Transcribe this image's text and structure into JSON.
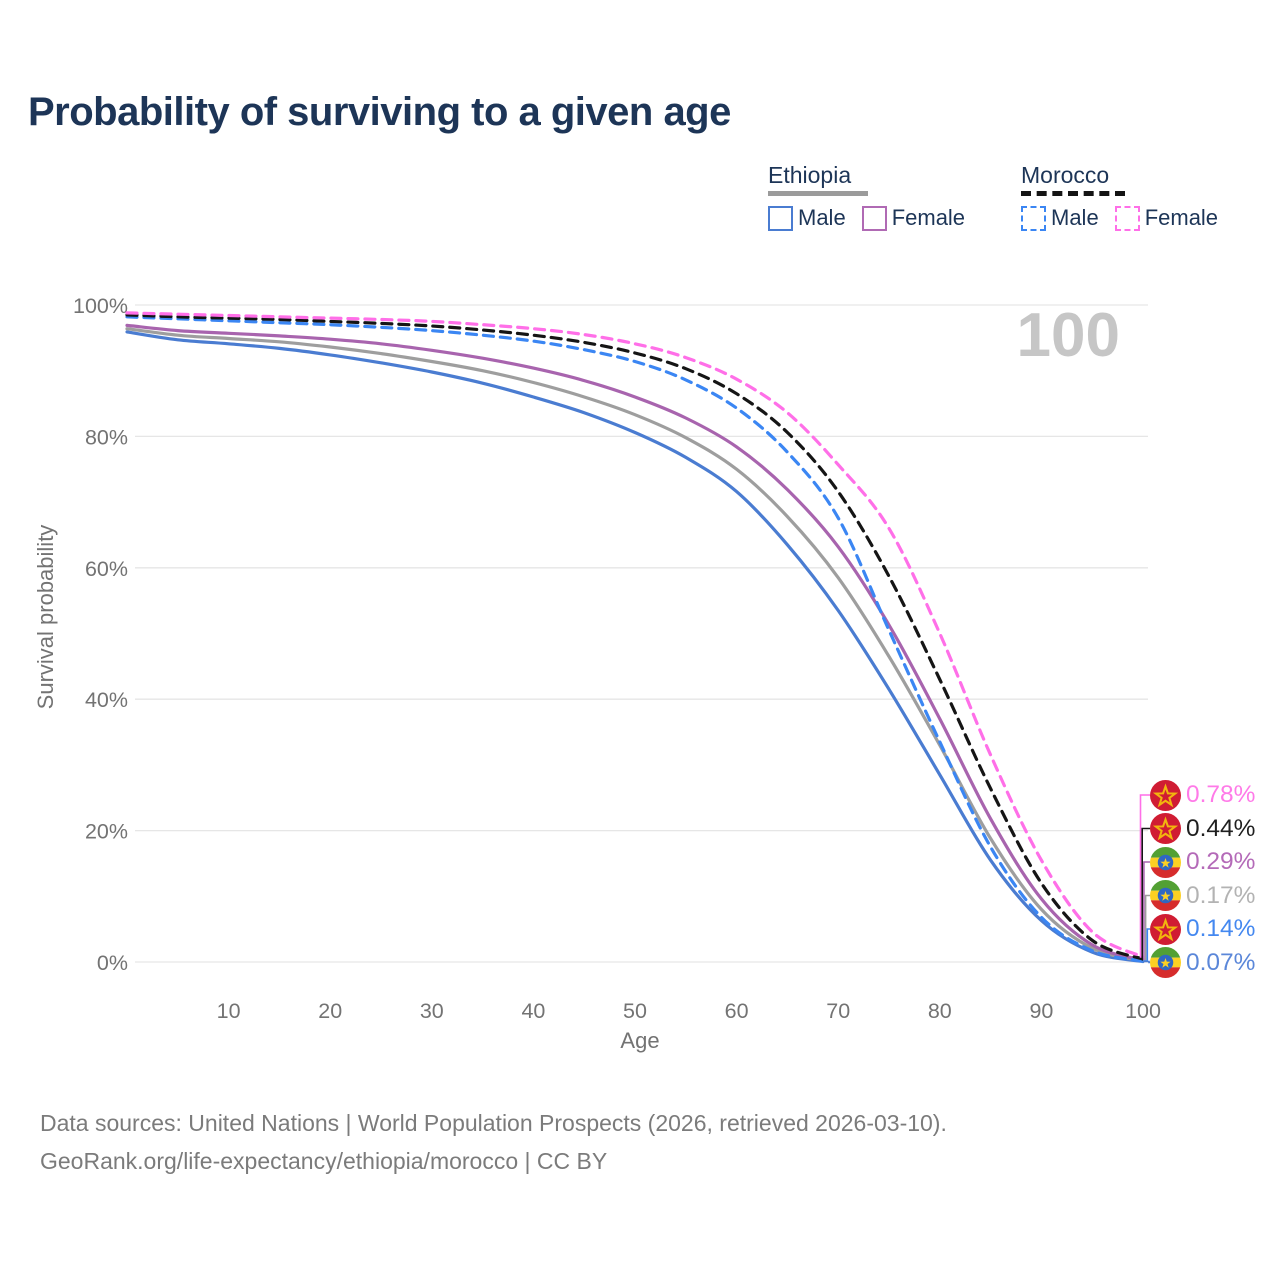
{
  "title": "Probability of surviving to a given age",
  "watermark": "100",
  "legend": {
    "groups": [
      {
        "id": "ethiopia",
        "label": "Ethiopia",
        "line_style": "solid",
        "line_color": "#9b9b9b",
        "items": [
          {
            "label": "Male",
            "swatch_color": "#4a7cd1",
            "swatch_style": "solid"
          },
          {
            "label": "Female",
            "swatch_color": "#b06ab4",
            "swatch_style": "solid"
          }
        ]
      },
      {
        "id": "morocco",
        "label": "Morocco",
        "line_style": "dashed",
        "line_color": "#141414",
        "items": [
          {
            "label": "Male",
            "swatch_color": "#3b86f3",
            "swatch_style": "dashed"
          },
          {
            "label": "Female",
            "swatch_color": "#ff6fe8",
            "swatch_style": "dashed"
          }
        ]
      }
    ]
  },
  "chart_data": {
    "type": "line",
    "title": "Probability of surviving to a given age",
    "xlabel": "Age",
    "ylabel": "Survival probability",
    "xlim": [
      0,
      100
    ],
    "ylim": [
      0,
      100
    ],
    "grid": true,
    "legend_position": "top-right",
    "x_ticks": [
      10,
      20,
      30,
      40,
      50,
      60,
      70,
      80,
      90,
      100
    ],
    "y_tick_values": [
      0,
      20,
      40,
      60,
      80,
      100
    ],
    "y_tick_labels": [
      "0%",
      "20%",
      "40%",
      "60%",
      "80%",
      "100%"
    ],
    "x": [
      0,
      5,
      10,
      15,
      20,
      25,
      30,
      35,
      40,
      45,
      50,
      55,
      60,
      65,
      70,
      75,
      80,
      85,
      90,
      95,
      100
    ],
    "series": [
      {
        "id": "ethiopia-male",
        "name": "Ethiopia Male",
        "color": "#4a7cd1",
        "style": "solid",
        "values": [
          95.9,
          94.7,
          94.1,
          93.4,
          92.4,
          91.2,
          89.8,
          88.1,
          86.0,
          83.6,
          80.6,
          76.8,
          71.6,
          63.5,
          53.5,
          41.5,
          28.5,
          15.5,
          6.3,
          1.5,
          0.07
        ]
      },
      {
        "id": "ethiopia-all",
        "name": "Ethiopia",
        "color": "#9e9e9e",
        "style": "solid",
        "values": [
          96.4,
          95.4,
          94.9,
          94.4,
          93.6,
          92.6,
          91.4,
          90.0,
          88.2,
          86.0,
          83.3,
          79.8,
          75.0,
          67.8,
          58.5,
          46.5,
          33.0,
          18.8,
          8.0,
          2.1,
          0.17
        ]
      },
      {
        "id": "ethiopia-female",
        "name": "Ethiopia Female",
        "color": "#a864ae",
        "style": "solid",
        "values": [
          96.9,
          96.1,
          95.7,
          95.3,
          94.8,
          94.1,
          93.1,
          91.9,
          90.4,
          88.5,
          86.0,
          82.8,
          78.4,
          71.9,
          63.2,
          51.3,
          37.0,
          21.8,
          9.6,
          2.6,
          0.29
        ]
      },
      {
        "id": "morocco-male",
        "name": "Morocco Male",
        "color": "#3b86f3",
        "style": "dashed",
        "values": [
          98.2,
          97.9,
          97.6,
          97.3,
          97.0,
          96.6,
          96.1,
          95.4,
          94.5,
          93.2,
          91.4,
          88.6,
          84.3,
          77.6,
          67.6,
          50.5,
          33.5,
          17.5,
          6.8,
          1.7,
          0.14
        ]
      },
      {
        "id": "morocco-all",
        "name": "Morocco",
        "color": "#151515",
        "style": "dashed",
        "values": [
          98.5,
          98.2,
          98.0,
          97.8,
          97.5,
          97.2,
          96.8,
          96.2,
          95.4,
          94.3,
          92.7,
          90.3,
          86.5,
          80.6,
          71.6,
          58.7,
          43.0,
          26.4,
          12.0,
          3.3,
          0.44
        ]
      },
      {
        "id": "morocco-female",
        "name": "Morocco Female",
        "color": "#ff6fe8",
        "style": "dashed",
        "values": [
          98.8,
          98.6,
          98.4,
          98.2,
          98.0,
          97.8,
          97.5,
          97.0,
          96.4,
          95.5,
          94.1,
          92.0,
          88.7,
          83.6,
          75.7,
          66.0,
          50.0,
          31.5,
          15.5,
          4.6,
          0.78
        ]
      }
    ]
  },
  "end_labels": [
    {
      "series": "morocco-female",
      "text": "0.78%",
      "color": "#ff7ae8",
      "flag": "morocco"
    },
    {
      "series": "morocco-all",
      "text": "0.44%",
      "color": "#1f1f1f",
      "flag": "morocco"
    },
    {
      "series": "ethiopia-female",
      "text": "0.29%",
      "color": "#b46ab8",
      "flag": "ethiopia"
    },
    {
      "series": "ethiopia-all",
      "text": "0.17%",
      "color": "#b3b3b3",
      "flag": "ethiopia"
    },
    {
      "series": "morocco-male",
      "text": "0.14%",
      "color": "#4488f0",
      "flag": "morocco"
    },
    {
      "series": "ethiopia-male",
      "text": "0.07%",
      "color": "#5b87d9",
      "flag": "ethiopia"
    }
  ],
  "footer": {
    "line1": "Data sources: United Nations | World Population Prospects (2026, retrieved 2026-03-10).",
    "line2": "GeoRank.org/life-expectancy/ethiopia/morocco | CC BY"
  }
}
